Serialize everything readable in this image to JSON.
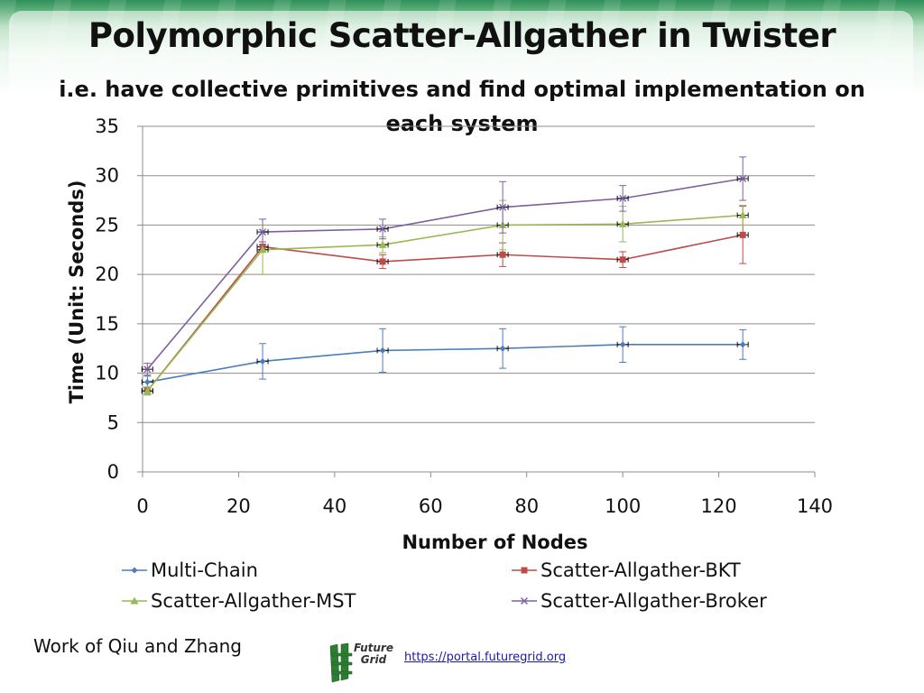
{
  "slide": {
    "title": "Polymorphic Scatter-Allgather in Twister",
    "subtitle": "i.e. have collective primitives and find optimal implementation on each system",
    "footer_credit": "Work of Qiu and Zhang",
    "logo_text_line1": "Future",
    "logo_text_line2": "Grid",
    "url": "https://portal.futuregrid.org"
  },
  "chart_data": {
    "type": "line",
    "xlabel": "Number of Nodes",
    "ylabel": "Time (Unit: Seconds)",
    "xlim": [
      0,
      140
    ],
    "ylim": [
      0,
      35
    ],
    "x_ticks": [
      "0",
      "20",
      "40",
      "60",
      "80",
      "100",
      "120",
      "140"
    ],
    "y_ticks": [
      "0",
      "5",
      "10",
      "15",
      "20",
      "25",
      "30",
      "35"
    ],
    "grid": "horizontal",
    "legend_placement": "bottom",
    "x": [
      1,
      25,
      50,
      75,
      100,
      125
    ],
    "series": [
      {
        "name": "Multi-Chain",
        "color": "#4a7ebb",
        "marker": "diamond",
        "values": [
          9.1,
          11.2,
          12.3,
          12.5,
          12.9,
          12.9
        ],
        "error": [
          0.6,
          1.8,
          2.2,
          2.0,
          1.8,
          1.5
        ]
      },
      {
        "name": "Scatter-Allgather-BKT",
        "color": "#be4b48",
        "marker": "square",
        "values": [
          8.2,
          22.8,
          21.3,
          22.0,
          21.5,
          24.0
        ],
        "error": [
          0.4,
          0.5,
          0.7,
          1.2,
          0.8,
          2.9
        ]
      },
      {
        "name": "Scatter-Allgather-MST",
        "color": "#98b954",
        "marker": "triangle",
        "values": [
          8.2,
          22.5,
          23.0,
          25.0,
          25.1,
          26.0
        ],
        "error": [
          0.4,
          2.5,
          0.8,
          2.5,
          1.8,
          1.0
        ]
      },
      {
        "name": "Scatter-Allgather-Broker",
        "color": "#7d60a0",
        "marker": "x",
        "values": [
          10.4,
          24.3,
          24.6,
          26.8,
          27.7,
          29.7
        ],
        "error": [
          0.6,
          1.3,
          1.0,
          2.6,
          1.3,
          2.2
        ]
      }
    ]
  }
}
